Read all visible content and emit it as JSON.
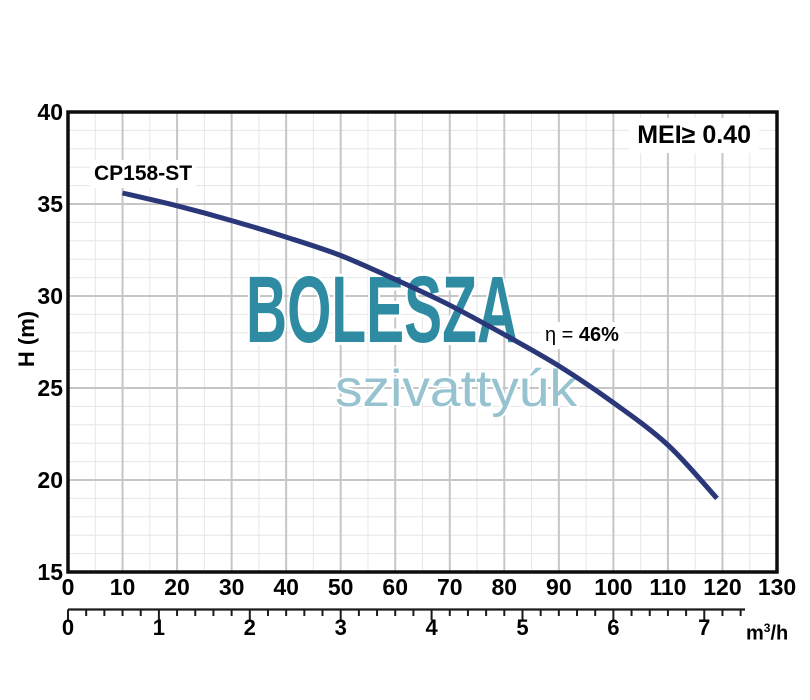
{
  "chart_data": {
    "type": "line",
    "title": "CP158-ST",
    "grid": true,
    "legend": false,
    "y_axis": {
      "label": "H (m)",
      "min": 15,
      "max": 40,
      "major_step": 5,
      "minor_step": 1,
      "ticks": [
        40,
        35,
        30,
        25,
        20,
        15
      ]
    },
    "x_axis_lmin": {
      "min": 0,
      "max": 130,
      "major_step": 10,
      "minor_step": 5,
      "ticks": [
        0,
        10,
        20,
        30,
        40,
        50,
        60,
        70,
        80,
        90,
        100,
        110,
        120,
        130
      ]
    },
    "x_axis_m3h": {
      "min": 0,
      "max": 7.4,
      "tick_step": 0.2,
      "label_ticks": [
        0,
        1,
        2,
        3,
        4,
        5,
        6,
        7
      ],
      "unit_base": "m",
      "unit_exponent": "3",
      "unit_suffix": "/h",
      "lmin_per_m3h": 16.6667
    },
    "series": [
      {
        "name": "CP158-ST",
        "flow_lmin": [
          10,
          20,
          30,
          40,
          50,
          60,
          70,
          80,
          90,
          100,
          110,
          119
        ],
        "head_m": [
          35.6,
          34.9,
          34.1,
          33.2,
          32.2,
          30.9,
          29.5,
          27.9,
          26.2,
          24.2,
          21.9,
          19.0
        ]
      }
    ],
    "annotations": {
      "mei": "MEI≥ 0.40",
      "efficiency_prefix": "η = ",
      "efficiency_value": "46%"
    },
    "watermark": {
      "primary": "BOLESZA",
      "secondary": "szivattyúk"
    },
    "colors": {
      "curve": "#2a3778",
      "watermark_primary": "#2e8ba1",
      "watermark_secondary": "#96c3cf",
      "grid_major": "#c6c6c6",
      "grid_minor": "#e6e6e6",
      "axis_border": "#0d0d0d",
      "ruler": "#1a1a1a",
      "text": "#000000"
    }
  }
}
